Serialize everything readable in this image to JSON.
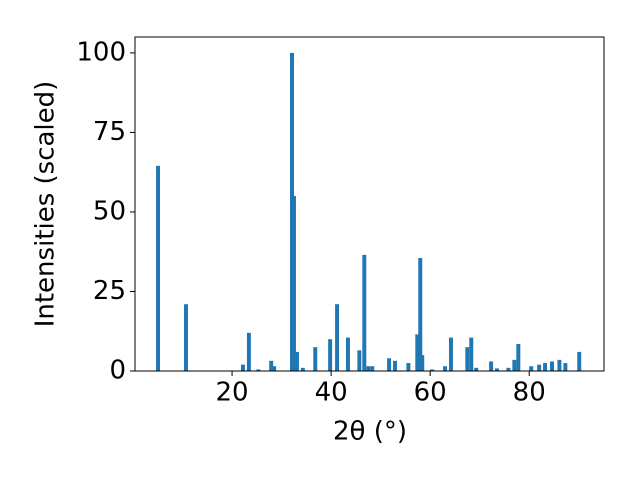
{
  "chart_data": {
    "type": "bar",
    "x": [
      5.05,
      10.7,
      22.2,
      23.4,
      25.3,
      27.9,
      28.5,
      32.1,
      32.5,
      33.1,
      34.3,
      36.8,
      39.8,
      41.2,
      43.4,
      45.7,
      46.7,
      47.5,
      48.3,
      51.7,
      52.9,
      55.6,
      57.4,
      58.0,
      58.4,
      60.4,
      63.0,
      64.2,
      67.5,
      68.3,
      69.3,
      72.3,
      73.5,
      75.8,
      77.0,
      77.8,
      80.4,
      82.0,
      83.2,
      84.6,
      86.1,
      87.3,
      90.1
    ],
    "values": [
      64.5,
      21,
      2,
      12,
      0.5,
      3.2,
      1.5,
      100,
      55,
      6,
      1,
      7.5,
      10,
      21,
      10.5,
      6.5,
      36.5,
      1.5,
      1.5,
      4,
      3.2,
      2.5,
      11.5,
      35.5,
      5,
      0.5,
      1.5,
      10.5,
      7.5,
      10.5,
      1,
      3,
      0.8,
      1,
      3.5,
      8.5,
      1.5,
      2,
      2.5,
      3,
      3.5,
      2.5,
      6
    ],
    "color": "#1f77b4",
    "xlabel": "2θ (°)",
    "ylabel": "Intensities (scaled)",
    "xlim": [
      0.4,
      95.1
    ],
    "xticks": [
      20,
      40,
      60,
      80
    ],
    "ylim": [
      0,
      105
    ],
    "yticks": [
      0,
      25,
      50,
      75,
      100
    ]
  }
}
